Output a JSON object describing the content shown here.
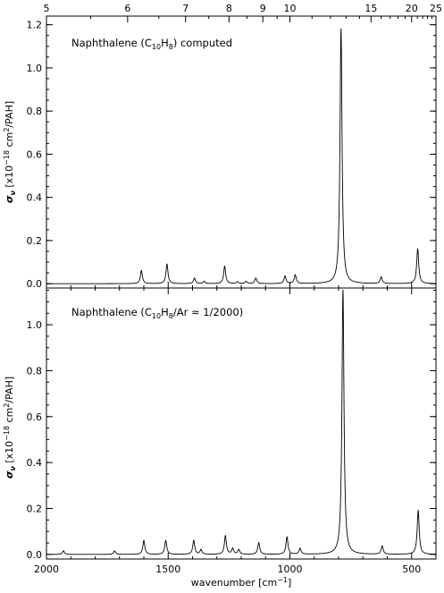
{
  "chart_data": [
    {
      "type": "line",
      "xlabel": "",
      "ylabel": "σν [x10⁻¹⁸ cm²/PAH]",
      "annotation_parts": [
        "Naphthalene (C",
        "10",
        "H",
        "8",
        ") computed"
      ],
      "xlim": [
        2000,
        400
      ],
      "ylim": [
        -0.02,
        1.24
      ],
      "yticks": [
        "0.0",
        "0.2",
        "0.4",
        "0.6",
        "0.8",
        "1.0",
        "1.2"
      ],
      "top_axis_ticks": [
        "5",
        "6",
        "7",
        "8",
        "9",
        "10",
        "15",
        "20",
        "25"
      ],
      "series": [
        {
          "peaks": [
            {
              "x": 1610,
              "y": 0.06
            },
            {
              "x": 1505,
              "y": 0.09
            },
            {
              "x": 1392,
              "y": 0.025
            },
            {
              "x": 1352,
              "y": 0.01
            },
            {
              "x": 1268,
              "y": 0.08
            },
            {
              "x": 1215,
              "y": 0.008
            },
            {
              "x": 1180,
              "y": 0.01
            },
            {
              "x": 1140,
              "y": 0.025
            },
            {
              "x": 1020,
              "y": 0.035
            },
            {
              "x": 978,
              "y": 0.04
            },
            {
              "x": 790,
              "y": 1.18
            },
            {
              "x": 625,
              "y": 0.03
            },
            {
              "x": 475,
              "y": 0.16
            }
          ]
        }
      ]
    },
    {
      "type": "line",
      "xlabel": "wavenumber [cm⁻¹]",
      "ylabel": "σν [x10⁻¹⁸ cm²/PAH]",
      "annotation_parts": [
        "Naphthalene (C",
        "10",
        "H",
        "8",
        "/Ar ≈ 1/2000)"
      ],
      "xlim": [
        2000,
        400
      ],
      "ylim": [
        -0.02,
        1.16
      ],
      "yticks": [
        "0.0",
        "0.2",
        "0.4",
        "0.6",
        "0.8",
        "1.0"
      ],
      "xticks": [
        "2000",
        "1500",
        "1000",
        "500"
      ],
      "series": [
        {
          "peaks": [
            {
              "x": 1930,
              "y": 0.015
            },
            {
              "x": 1720,
              "y": 0.015
            },
            {
              "x": 1600,
              "y": 0.06
            },
            {
              "x": 1510,
              "y": 0.06
            },
            {
              "x": 1395,
              "y": 0.06
            },
            {
              "x": 1365,
              "y": 0.02
            },
            {
              "x": 1265,
              "y": 0.08
            },
            {
              "x": 1235,
              "y": 0.025
            },
            {
              "x": 1210,
              "y": 0.02
            },
            {
              "x": 1128,
              "y": 0.05
            },
            {
              "x": 1012,
              "y": 0.075
            },
            {
              "x": 958,
              "y": 0.025
            },
            {
              "x": 782,
              "y": 1.15
            },
            {
              "x": 621,
              "y": 0.035
            },
            {
              "x": 473,
              "y": 0.19
            }
          ]
        }
      ]
    }
  ]
}
